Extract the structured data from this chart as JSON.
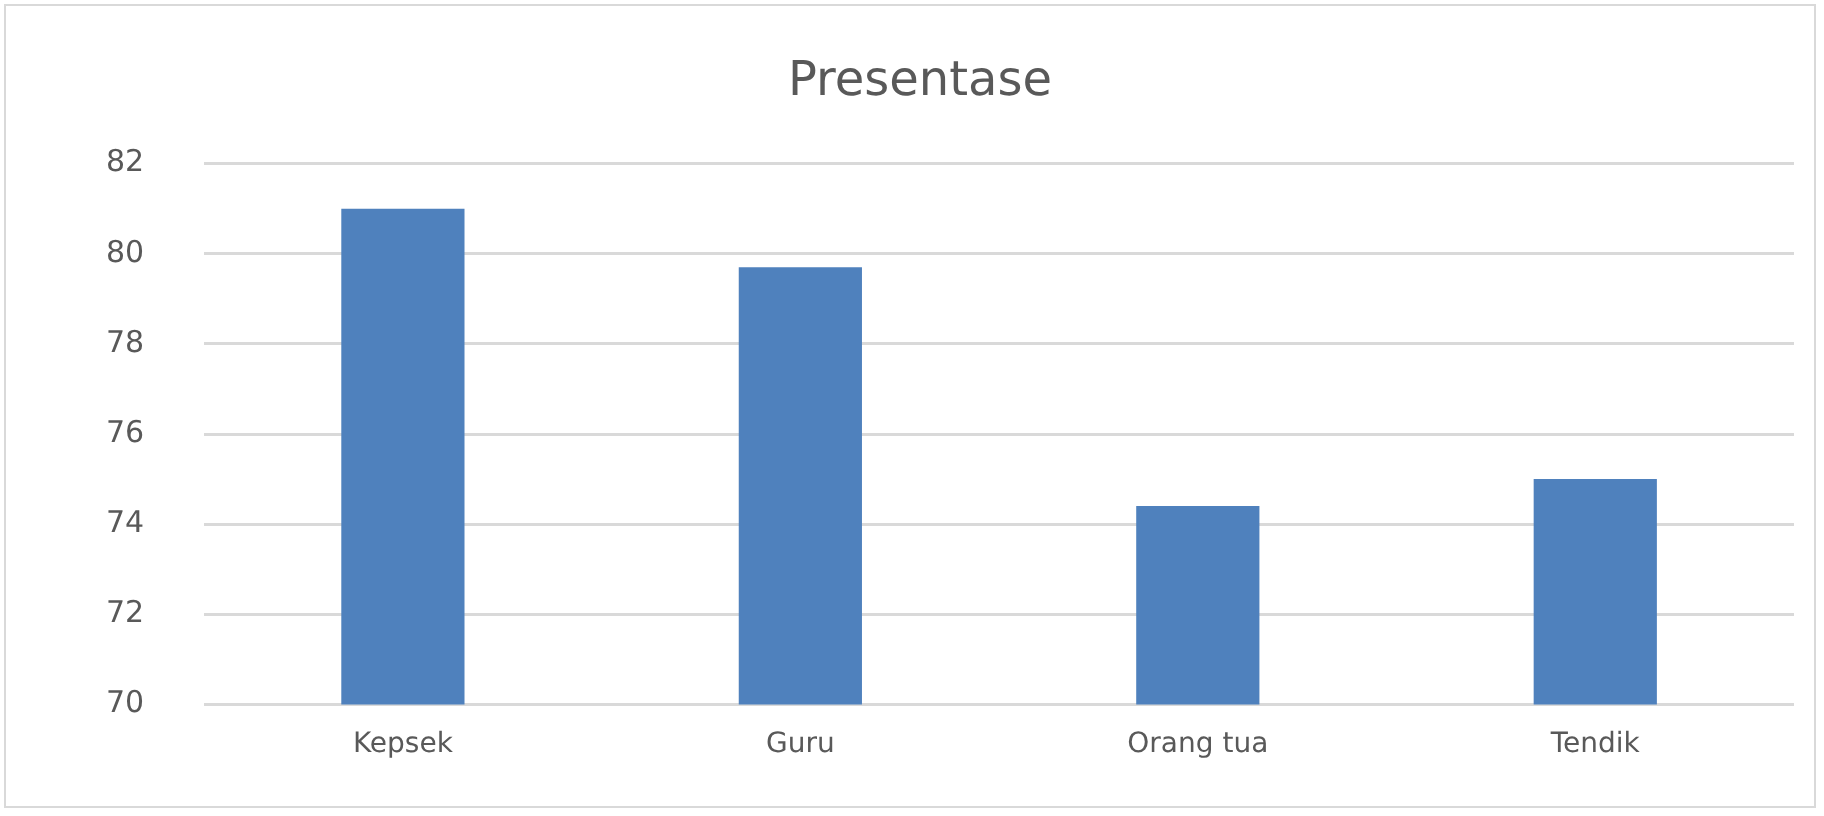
{
  "chart_data": {
    "type": "bar",
    "title": "Presentase",
    "categories": [
      "Kepsek",
      "Guru",
      "Orang tua",
      "Tendik"
    ],
    "values": [
      81,
      79.7,
      74.4,
      75
    ],
    "color": "#4f81bd",
    "ylim": [
      70,
      82
    ],
    "yticks": [
      70,
      72,
      74,
      76,
      78,
      80,
      82
    ],
    "grid": "y",
    "legend": false
  }
}
